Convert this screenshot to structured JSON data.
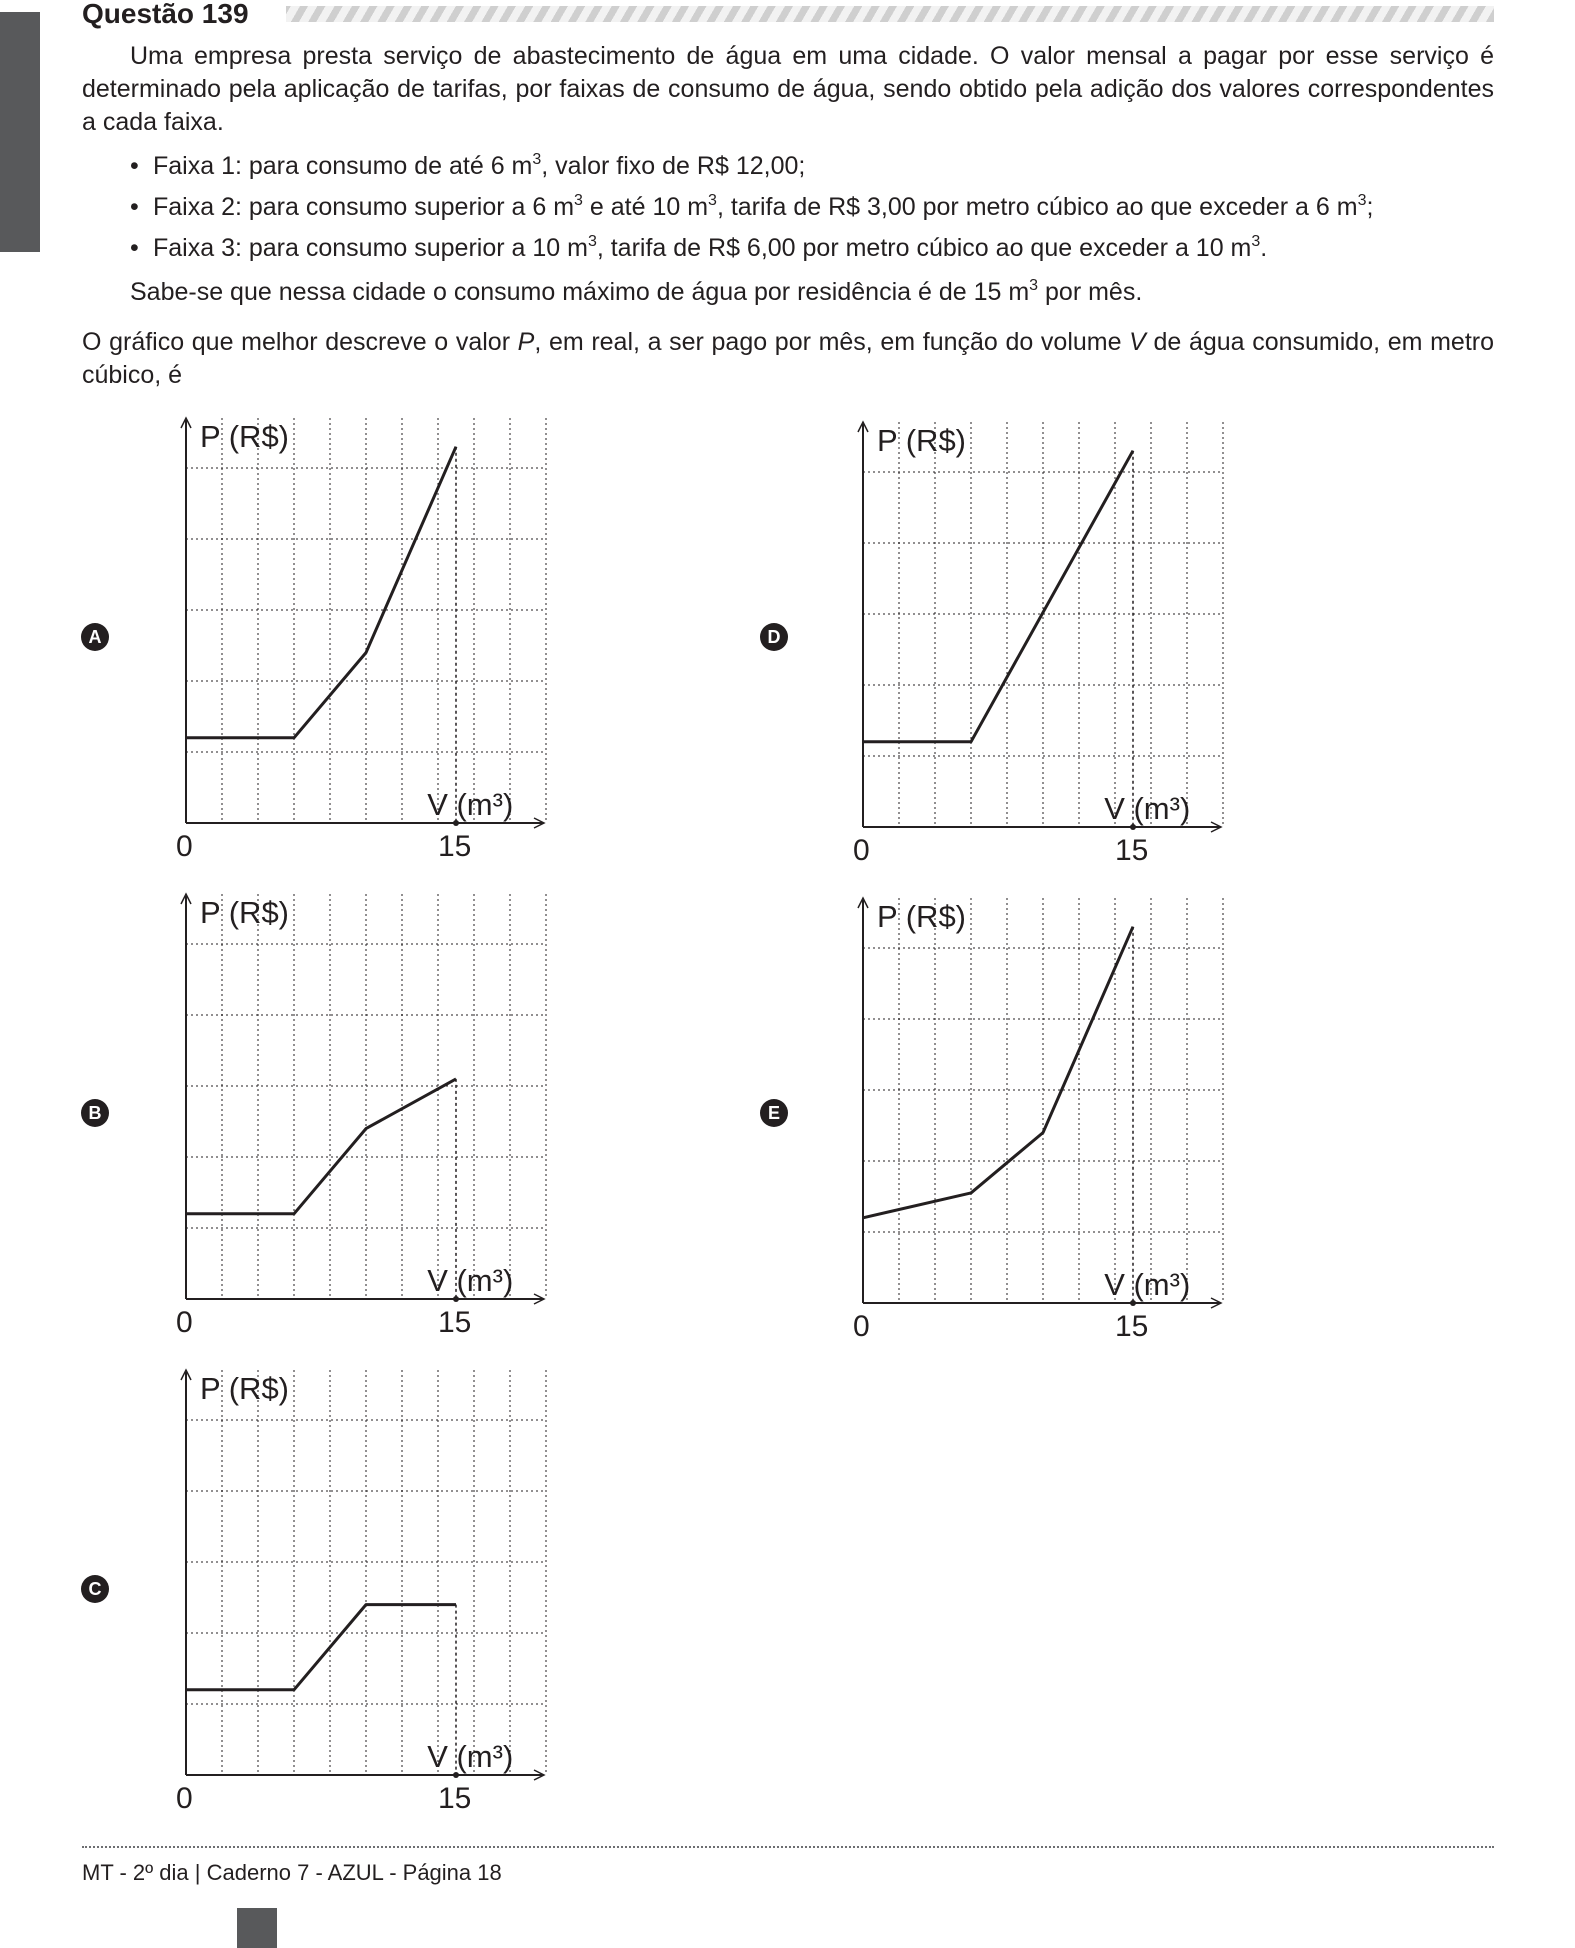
{
  "question": {
    "title": "Questão 139",
    "intro": "Uma empresa presta serviço de abastecimento de água em uma cidade. O valor mensal a pagar por esse serviço é determinado pela aplicação de tarifas, por faixas de consumo de água, sendo obtido pela adição dos valores correspondentes a cada faixa.",
    "bullets": [
      {
        "before": "Faixa 1: para consumo de até 6 m",
        "sup": "3",
        "after": ", valor fixo de R$ 12,00;"
      },
      {
        "before": "Faixa 2: para consumo superior a 6 m",
        "sup": "3",
        "mid": " e até 10 m",
        "sup2": "3",
        "mid2": ", tarifa de R$ 3,00 por metro cúbico ao que exceder a 6 m",
        "sup3": "3",
        "after": ";"
      },
      {
        "before": "Faixa 3: para consumo superior a 10 m",
        "sup": "3",
        "mid": ", tarifa de R$ 6,00 por metro cúbico ao que exceder a 10 m",
        "sup2": "3",
        "after": "."
      }
    ],
    "closing": {
      "before": "Sabe-se que nessa cidade o consumo máximo de água por residência é de 15 m",
      "sup": "3",
      "after": " por mês."
    },
    "prompt": {
      "p1": "O gráfico que melhor descreve o valor ",
      "var1": "P",
      "p2": ", em real, a ser pago por mês, em função do volume ",
      "var2": "V",
      "p3": " de água consumido, em metro cúbico, é"
    }
  },
  "chart_data": [
    {
      "option": "A",
      "type": "line",
      "ylabel": "P (R$)",
      "xlabel": "V (m³)",
      "x_ticks": [
        "0",
        "15"
      ],
      "grid": "dotted",
      "points": [
        [
          0,
          1.2
        ],
        [
          3,
          1.2
        ],
        [
          5,
          2.4
        ],
        [
          7.5,
          5.3
        ]
      ]
    },
    {
      "option": "B",
      "type": "line",
      "ylabel": "P (R$)",
      "xlabel": "V (m³)",
      "x_ticks": [
        "0",
        "15"
      ],
      "grid": "dotted",
      "points": [
        [
          0,
          1.2
        ],
        [
          3,
          1.2
        ],
        [
          5,
          2.4
        ],
        [
          7.5,
          3.1
        ]
      ]
    },
    {
      "option": "C",
      "type": "line",
      "ylabel": "P (R$)",
      "xlabel": "V (m³)",
      "x_ticks": [
        "0",
        "15"
      ],
      "grid": "dotted",
      "points": [
        [
          0,
          1.2
        ],
        [
          3,
          1.2
        ],
        [
          5,
          2.4
        ],
        [
          7.5,
          2.4
        ]
      ]
    },
    {
      "option": "D",
      "type": "line",
      "ylabel": "P (R$)",
      "xlabel": "V (m³)",
      "x_ticks": [
        "0",
        "15"
      ],
      "grid": "dotted",
      "points": [
        [
          0,
          1.2
        ],
        [
          3,
          1.2
        ],
        [
          7.5,
          5.3
        ]
      ]
    },
    {
      "option": "E",
      "type": "line",
      "ylabel": "P (R$)",
      "xlabel": "V (m³)",
      "x_ticks": [
        "0",
        "15"
      ],
      "grid": "dotted",
      "points": [
        [
          0,
          1.2
        ],
        [
          3,
          1.55
        ],
        [
          5,
          2.4
        ],
        [
          7.5,
          5.3
        ]
      ]
    }
  ],
  "footer": "MT - 2º dia | Caderno 7 - AZUL - Página 18"
}
